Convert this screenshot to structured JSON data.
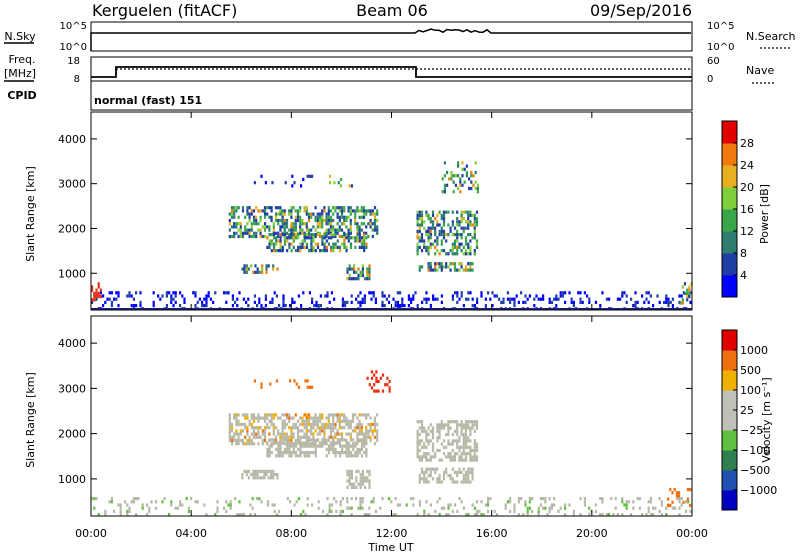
{
  "header": {
    "station": "Kerguelen (fitACF)",
    "beam": "Beam 06",
    "date": "09/Sep/2016"
  },
  "top_panels": {
    "nsky_label": "N.Sky",
    "nsky_ticks": [
      "10^5",
      "10^0"
    ],
    "nsearch_label": "N.Search",
    "freq_label_1": "Freq.",
    "freq_label_2": "[MHz]",
    "freq_ticks": [
      "18",
      "8"
    ],
    "nave_label": "Nave",
    "nave_ticks": [
      "60",
      "0"
    ],
    "cpid_label": "CPID",
    "cpid_text": "normal (fast) 151"
  },
  "colors": {
    "power_scale": [
      "#0000ff",
      "#1f3fa6",
      "#2e7d6e",
      "#3aa64a",
      "#7fcf3a",
      "#e8b020",
      "#f07a10",
      "#e83010",
      "#e00000"
    ],
    "velocity_scale": [
      "#0000c0",
      "#2050b0",
      "#2e8050",
      "#60c040",
      "#c0c0b8",
      "#c0c0b8",
      "#f0b000",
      "#f07010",
      "#e83010",
      "#e00000"
    ],
    "ground_scatter": "#b8b8a8"
  },
  "chart_data": [
    {
      "type": "heatmap",
      "name_panel": "power",
      "ylabel": "Slant Range [km]",
      "yticks": [
        "1000",
        "2000",
        "3000",
        "4000"
      ],
      "ylim": [
        180,
        4600
      ],
      "xlim": [
        0,
        24
      ],
      "colorbar_label": "Power [dB]",
      "colorbar_ticks": [
        "4",
        "8",
        "12",
        "16",
        "20",
        "24",
        "28"
      ],
      "colorbar_range": [
        0,
        30
      ]
    },
    {
      "type": "heatmap",
      "name_panel": "velocity",
      "ylabel": "Slant Range [km]",
      "yticks": [
        "1000",
        "2000",
        "3000",
        "4000"
      ],
      "ylim": [
        180,
        4600
      ],
      "xlim": [
        0,
        24
      ],
      "xlabel": "Time UT",
      "xticks": [
        "00:00",
        "04:00",
        "08:00",
        "12:00",
        "16:00",
        "20:00",
        "00:00"
      ],
      "colorbar_label": "Velocity [m s⁻¹]",
      "colorbar_ticks": [
        "1000",
        "500",
        "100",
        "25",
        "−25",
        "−100",
        "−500",
        "−1000"
      ]
    }
  ]
}
